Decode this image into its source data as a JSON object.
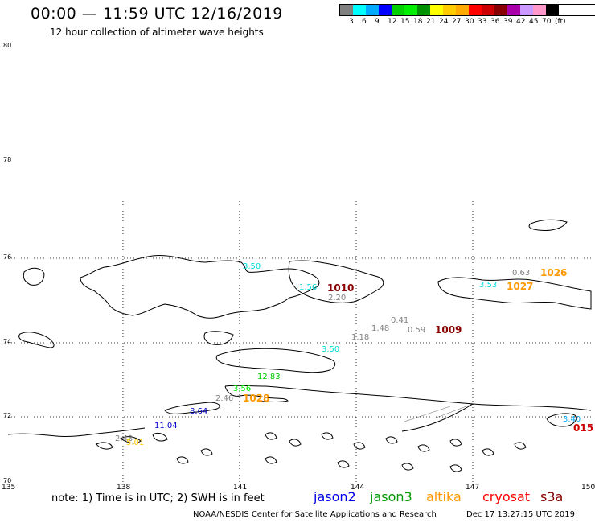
{
  "header": {
    "title": "00:00 — 11:59 UTC 12/16/2019",
    "subtitle": "12 hour collection of altimeter wave heights"
  },
  "legend": {
    "colors": [
      "#808080",
      "#00ffff",
      "#00aaff",
      "#0000ff",
      "#00d000",
      "#00ee00",
      "#009000",
      "#ffff00",
      "#ffcc00",
      "#ffaa00",
      "#ff0000",
      "#cc0000",
      "#880000",
      "#aa00aa",
      "#cc99ff",
      "#ff99cc",
      "#000000"
    ],
    "ticks": [
      "3",
      "6",
      "9",
      "12",
      "15",
      "18",
      "21",
      "24",
      "27",
      "30",
      "33",
      "36",
      "39",
      "42",
      "45",
      "70",
      "(ft)"
    ]
  },
  "axes": {
    "lat_labels": [
      "80",
      "78",
      "76",
      "74",
      "72",
      "70"
    ],
    "lon_labels": [
      "135",
      "138",
      "141",
      "144",
      "147",
      "150"
    ]
  },
  "wave_heights": [
    {
      "text": "3.50",
      "color": "#00dddd"
    },
    {
      "text": "1.56",
      "color": "#00dddd"
    },
    {
      "text": "2.20",
      "color": "#808080"
    },
    {
      "text": "0.63",
      "color": "#808080"
    },
    {
      "text": "3.53",
      "color": "#00dddd"
    },
    {
      "text": "0.41",
      "color": "#808080"
    },
    {
      "text": "1.48",
      "color": "#808080"
    },
    {
      "text": "0.59",
      "color": "#808080"
    },
    {
      "text": "1.18",
      "color": "#808080"
    },
    {
      "text": "3.50",
      "color": "#00dddd"
    },
    {
      "text": "12.83",
      "color": "#00cc00"
    },
    {
      "text": "3.56",
      "color": "#00ee00"
    },
    {
      "text": "2.46",
      "color": "#808080"
    },
    {
      "text": "8.64",
      "color": "#0000cc"
    },
    {
      "text": "11.04",
      "color": "#0000cc"
    },
    {
      "text": "2.43",
      "color": "#808080"
    },
    {
      "text": "5.01",
      "color": "#ffcc00"
    },
    {
      "text": "3.40",
      "color": "#00aaff"
    }
  ],
  "pressure_labels": [
    {
      "text": "1010",
      "color": "#880000"
    },
    {
      "text": "1026",
      "color": "#ff9900"
    },
    {
      "text": "1027",
      "color": "#ff9900"
    },
    {
      "text": "1009",
      "color": "#880000"
    },
    {
      "text": "1028",
      "color": "#ff9900"
    },
    {
      "text": "015",
      "color": "#cc0000"
    }
  ],
  "note": "note: 1) Time is in UTC; 2) SWH is in feet",
  "satellites": [
    {
      "name": "jason2",
      "color": "#0000ee"
    },
    {
      "name": "jason3",
      "color": "#009900"
    },
    {
      "name": "altika",
      "color": "#ff9900"
    },
    {
      "name": "cryosat",
      "color": "#ff0000"
    },
    {
      "name": "s3a",
      "color": "#880000"
    }
  ],
  "footer": {
    "org": "NOAA/NESDIS Center for Satellite Applications and Research",
    "timestamp": "Dec 17 13:27:15 UTC 2019"
  }
}
